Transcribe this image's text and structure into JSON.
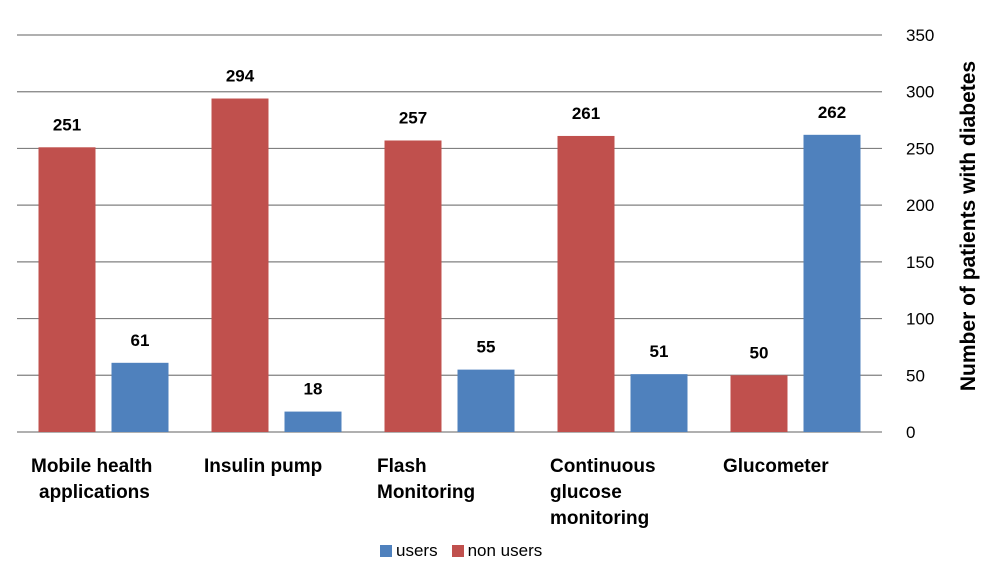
{
  "chart_data": {
    "type": "bar",
    "categories": [
      [
        "Mobile health",
        "applications"
      ],
      [
        "Insulin pump"
      ],
      [
        "Flash",
        "Monitoring"
      ],
      [
        "Continuous",
        "glucose",
        "monitoring"
      ],
      [
        "Glucometer"
      ]
    ],
    "series": [
      {
        "name": "non users",
        "color": "#c0504d",
        "values": [
          251,
          294,
          257,
          261,
          50
        ]
      },
      {
        "name": "users",
        "color": "#4f81bd",
        "values": [
          61,
          18,
          55,
          51,
          262
        ]
      }
    ],
    "legend_order": [
      "users",
      "non users"
    ],
    "ylabel": "Number of patients with diabetes",
    "ylim": [
      0,
      350
    ],
    "yticks": [
      0,
      50,
      100,
      150,
      200,
      250,
      300,
      350
    ],
    "y_axis_position": "right",
    "grid": true,
    "legend_position": "bottom"
  }
}
